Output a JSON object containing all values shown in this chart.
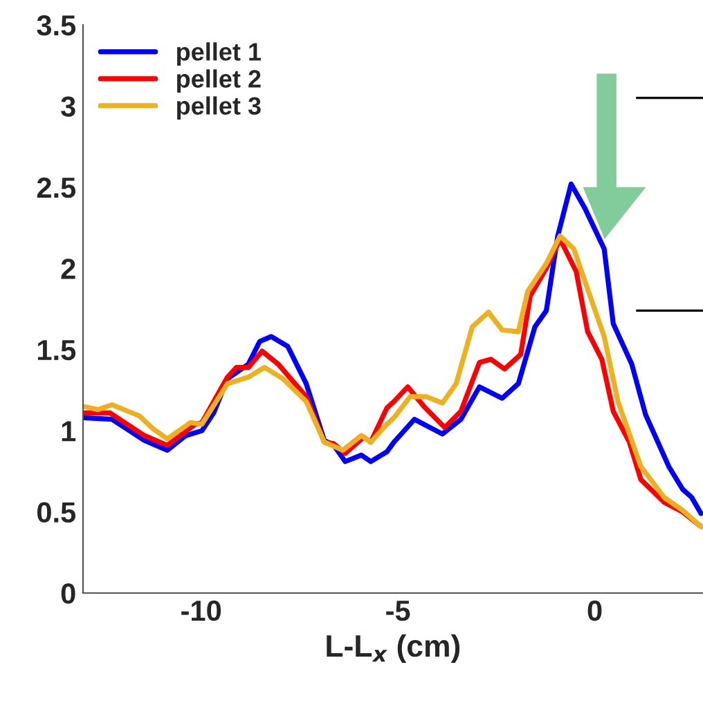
{
  "chart_data": {
    "type": "line",
    "xlabel": "L-L$_{x}$ (cm)",
    "xlim": [
      -13,
      2.75
    ],
    "xticks": [
      -10,
      -5,
      0
    ],
    "ylim": [
      0,
      3.5
    ],
    "yticks": [
      0,
      0.5,
      1,
      1.5,
      2,
      2.5,
      3,
      3.5
    ],
    "legend": "top left",
    "grid": false,
    "marker": "none",
    "line_style": "solid",
    "series": [
      {
        "name": "pellet 1",
        "color": "#0000ff",
        "x": [
          -13.0,
          -12.26,
          -11.44,
          -10.86,
          -10.39,
          -9.98,
          -9.68,
          -9.33,
          -8.8,
          -8.51,
          -8.22,
          -7.8,
          -7.33,
          -6.87,
          -6.63,
          -6.34,
          -5.93,
          -5.69,
          -5.28,
          -5.1,
          -4.58,
          -3.87,
          -3.4,
          -2.93,
          -2.35,
          -1.94,
          -1.52,
          -1.23,
          -0.94,
          -0.6,
          -0.25,
          0.24,
          0.47,
          0.94,
          1.29,
          1.88,
          2.23,
          2.46,
          2.7
        ],
        "values": [
          1.08,
          1.07,
          0.94,
          0.88,
          0.97,
          1.0,
          1.11,
          1.32,
          1.41,
          1.55,
          1.58,
          1.52,
          1.29,
          0.94,
          0.91,
          0.81,
          0.85,
          0.81,
          0.87,
          0.93,
          1.07,
          0.98,
          1.07,
          1.27,
          1.2,
          1.29,
          1.64,
          1.74,
          2.2,
          2.52,
          2.37,
          2.12,
          1.66,
          1.41,
          1.1,
          0.78,
          0.64,
          0.59,
          0.49
        ]
      },
      {
        "name": "pellet 2",
        "color": "#ff0000",
        "x": [
          -13.0,
          -12.32,
          -11.44,
          -10.86,
          -10.15,
          -9.98,
          -9.33,
          -9.1,
          -8.8,
          -8.45,
          -8.04,
          -7.33,
          -6.87,
          -6.63,
          -6.34,
          -5.87,
          -5.69,
          -5.28,
          -5.1,
          -4.75,
          -4.34,
          -3.81,
          -3.4,
          -2.93,
          -2.64,
          -2.29,
          -1.88,
          -1.64,
          -1.23,
          -0.88,
          -0.47,
          -0.18,
          0.18,
          0.47,
          0.88,
          1.17,
          1.76,
          2.23,
          2.7
        ],
        "values": [
          1.11,
          1.11,
          0.97,
          0.91,
          1.04,
          1.05,
          1.33,
          1.39,
          1.39,
          1.49,
          1.41,
          1.21,
          0.93,
          0.92,
          0.86,
          0.96,
          0.93,
          1.14,
          1.18,
          1.27,
          1.15,
          1.02,
          1.12,
          1.42,
          1.44,
          1.38,
          1.47,
          1.83,
          2.0,
          2.18,
          1.98,
          1.61,
          1.44,
          1.12,
          0.93,
          0.7,
          0.56,
          0.5,
          0.41
        ]
      },
      {
        "name": "pellet 3",
        "color": "#edb120",
        "x": [
          -13.0,
          -12.62,
          -12.26,
          -11.56,
          -11.21,
          -10.86,
          -10.27,
          -9.98,
          -9.33,
          -8.8,
          -8.39,
          -7.92,
          -7.33,
          -6.87,
          -6.4,
          -5.93,
          -5.69,
          -5.28,
          -5.1,
          -4.69,
          -4.28,
          -3.87,
          -3.52,
          -3.11,
          -2.7,
          -2.35,
          -1.94,
          -1.7,
          -1.23,
          -0.88,
          -0.53,
          -0.12,
          0.24,
          0.59,
          1.17,
          1.76,
          2.23,
          2.7
        ],
        "values": [
          1.15,
          1.13,
          1.16,
          1.09,
          1.01,
          0.95,
          1.05,
          1.04,
          1.29,
          1.33,
          1.39,
          1.32,
          1.18,
          0.93,
          0.88,
          0.97,
          0.93,
          1.04,
          1.08,
          1.21,
          1.21,
          1.17,
          1.29,
          1.64,
          1.73,
          1.62,
          1.61,
          1.86,
          2.03,
          2.2,
          2.12,
          1.83,
          1.58,
          1.18,
          0.78,
          0.59,
          0.51,
          0.41
        ]
      }
    ]
  }
}
